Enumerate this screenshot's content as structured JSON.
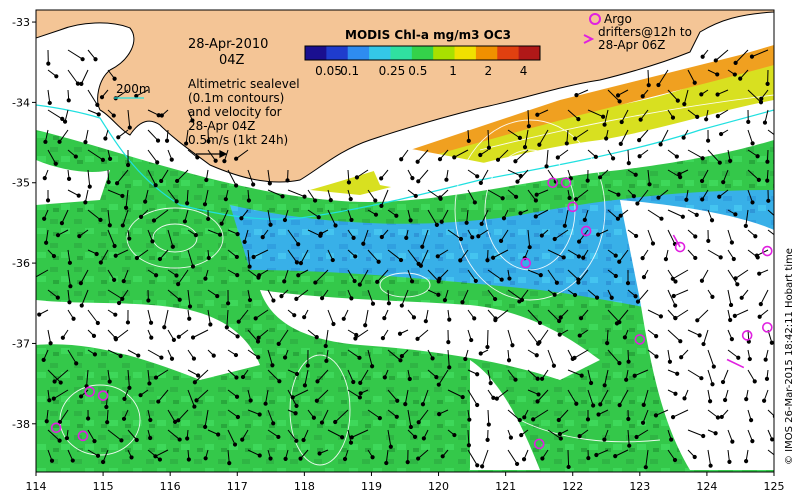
{
  "map": {
    "title": "MODIS Chl-a mg/m3 OC3",
    "date": "28-Apr-2010",
    "time": "04Z",
    "contour_label": "200m",
    "description_lines": [
      "Altimetric sealevel",
      "(0.1m contours)",
      "and velocity for",
      "28-Apr 04Z",
      "0.5m/s (1kt 24h)"
    ],
    "colorbar_ticks": [
      "0.05",
      "0.1",
      "0.25",
      "0.5",
      "1",
      "2",
      "4"
    ],
    "colorbar_colors": [
      "#1a0f90",
      "#1f3ccd",
      "#2e8cf0",
      "#34c8e8",
      "#30e0a0",
      "#34d24a",
      "#a8e000",
      "#f0e000",
      "#f09000",
      "#e04010",
      "#b01818"
    ],
    "argo_legend": [
      "Argo",
      "drifters@12h to",
      "28-Apr 06Z"
    ],
    "credit": "© IMOS 26-Mar-2015 18:42:11 Hobart time",
    "lon_ticks": [
      "114",
      "115",
      "116",
      "117",
      "118",
      "119",
      "120",
      "121",
      "122",
      "123",
      "124",
      "125"
    ],
    "lat_ticks": [
      "-33",
      "-34",
      "-35",
      "-36",
      "-37",
      "-38"
    ],
    "colors": {
      "land": "#f4c596",
      "ocean_gap": "#ffffff",
      "argo": "#e020e0",
      "contour": "#ffffff",
      "coast_200m": "#20e0e0"
    }
  }
}
